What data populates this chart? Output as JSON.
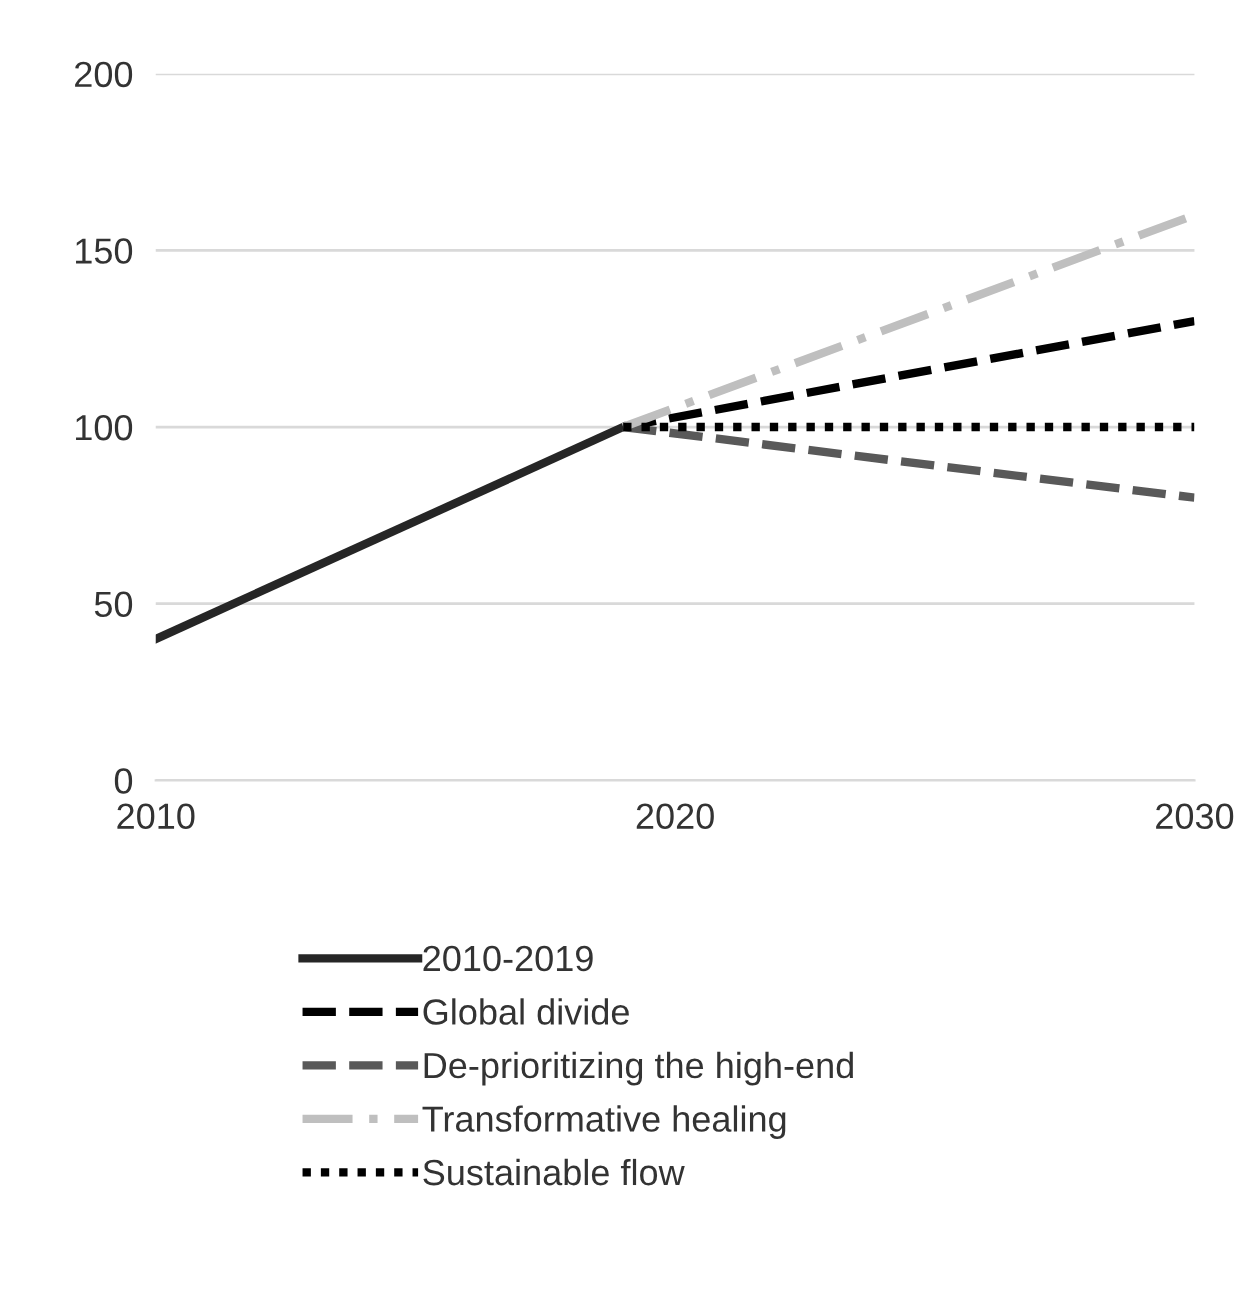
{
  "chart_data": {
    "type": "line",
    "series": [
      {
        "name": "2010-2019",
        "color": "#262626",
        "line_style": "solid",
        "x": [
          2010,
          2019
        ],
        "values": [
          40,
          100
        ]
      },
      {
        "name": "Global divide",
        "color": "#000000",
        "line_style": "dashed",
        "x": [
          2019,
          2030
        ],
        "values": [
          100,
          130
        ]
      },
      {
        "name": "De-prioritizing the high-end",
        "color": "#595959",
        "line_style": "dashed",
        "x": [
          2019,
          2030
        ],
        "values": [
          100,
          80
        ]
      },
      {
        "name": "Transformative healing",
        "color": "#bfbfbf",
        "line_style": "dashdot",
        "x": [
          2019,
          2030
        ],
        "values": [
          100,
          160
        ]
      },
      {
        "name": "Sustainable flow",
        "color": "#000000",
        "line_style": "dotted",
        "x": [
          2019,
          2030
        ],
        "values": [
          100,
          100
        ]
      }
    ],
    "xlim": [
      2010,
      2030
    ],
    "xticks": [
      2010,
      2020,
      2030
    ],
    "ylim": [
      0,
      200
    ],
    "yticks": [
      0,
      50,
      100,
      150,
      200
    ],
    "grid": "y",
    "legend": "bottom",
    "marker": "none"
  }
}
